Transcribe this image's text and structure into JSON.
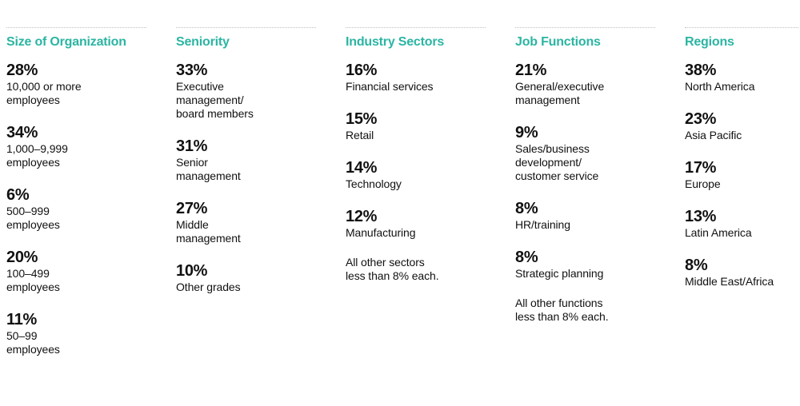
{
  "accent_color": "#2bb5a3",
  "columns": [
    {
      "heading": "Size of Organization",
      "stats": [
        {
          "value": "28%",
          "label": "10,000 or more\nemployees"
        },
        {
          "value": "34%",
          "label": "1,000–9,999\nemployees"
        },
        {
          "value": "6%",
          "label": "500–999\nemployees"
        },
        {
          "value": "20%",
          "label": "100–499\nemployees"
        },
        {
          "value": "11%",
          "label": "50–99\nemployees"
        }
      ],
      "note": ""
    },
    {
      "heading": "Seniority",
      "stats": [
        {
          "value": "33%",
          "label": "Executive\nmanagement/\nboard members"
        },
        {
          "value": "31%",
          "label": "Senior\nmanagement"
        },
        {
          "value": "27%",
          "label": "Middle\nmanagement"
        },
        {
          "value": "10%",
          "label": "Other grades"
        }
      ],
      "note": ""
    },
    {
      "heading": "Industry Sectors",
      "stats": [
        {
          "value": "16%",
          "label": "Financial services"
        },
        {
          "value": "15%",
          "label": "Retail"
        },
        {
          "value": "14%",
          "label": "Technology"
        },
        {
          "value": "12%",
          "label": "Manufacturing"
        }
      ],
      "note": "All other sectors\nless than 8% each."
    },
    {
      "heading": "Job Functions",
      "stats": [
        {
          "value": "21%",
          "label": "General/executive\nmanagement"
        },
        {
          "value": "9%",
          "label": "Sales/business\ndevelopment/\ncustomer service"
        },
        {
          "value": "8%",
          "label": "HR/training"
        },
        {
          "value": "8%",
          "label": "Strategic planning"
        }
      ],
      "note": "All other functions\nless than 8% each."
    },
    {
      "heading": "Regions",
      "stats": [
        {
          "value": "38%",
          "label": "North America"
        },
        {
          "value": "23%",
          "label": "Asia Pacific"
        },
        {
          "value": "17%",
          "label": "Europe"
        },
        {
          "value": "13%",
          "label": "Latin America"
        },
        {
          "value": "8%",
          "label": "Middle East/Africa"
        }
      ],
      "note": ""
    }
  ]
}
